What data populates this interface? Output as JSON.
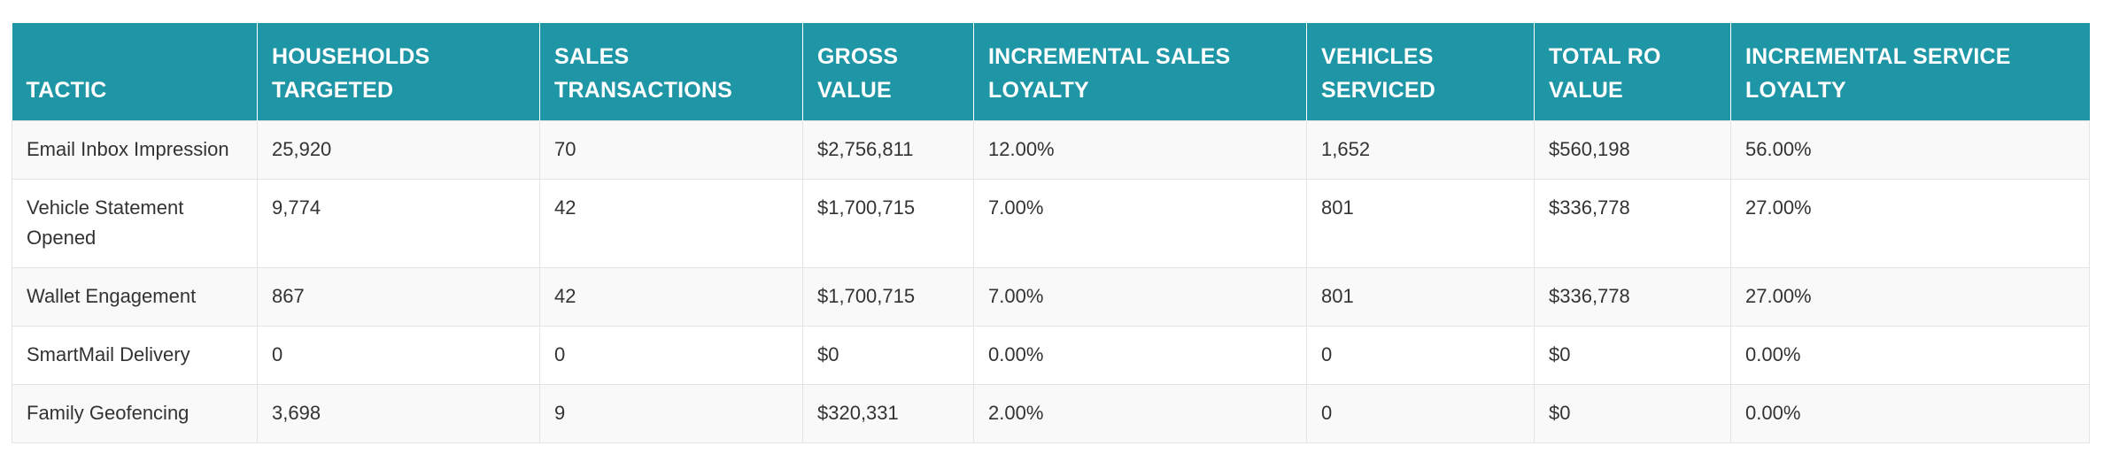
{
  "table": {
    "columns": [
      "TACTIC",
      "HOUSEHOLDS TARGETED",
      "SALES TRANSACTIONS",
      "GROSS VALUE",
      "INCREMENTAL SALES LOYALTY",
      "VEHICLES SERVICED",
      "TOTAL RO VALUE",
      "INCREMENTAL SERVICE LOYALTY"
    ],
    "rows": [
      [
        "Email Inbox Impression",
        "25,920",
        "70",
        "$2,756,811",
        "12.00%",
        "1,652",
        "$560,198",
        "56.00%"
      ],
      [
        "Vehicle Statement Opened",
        "9,774",
        "42",
        "$1,700,715",
        "7.00%",
        "801",
        "$336,778",
        "27.00%"
      ],
      [
        "Wallet Engagement",
        "867",
        "42",
        "$1,700,715",
        "7.00%",
        "801",
        "$336,778",
        "27.00%"
      ],
      [
        "SmartMail Delivery",
        "0",
        "0",
        "$0",
        "0.00%",
        "0",
        "$0",
        "0.00%"
      ],
      [
        "Family Geofencing",
        "3,698",
        "9",
        "$320,331",
        "2.00%",
        "0",
        "$0",
        "0.00%"
      ]
    ]
  },
  "colors": {
    "header_background": "#1f96a6",
    "header_text": "#ffffff",
    "row_stripe": "#f9f9f9",
    "border": "#e4e4e4"
  }
}
